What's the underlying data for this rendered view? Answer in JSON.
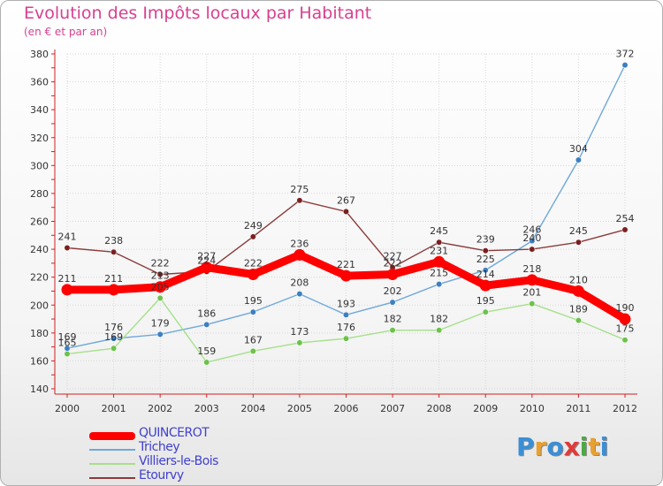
{
  "header": {
    "title": "Evolution des Impôts locaux par Habitant",
    "subtitle": "(en € et par an)"
  },
  "logo": {
    "text": "Proxiti",
    "colors": [
      "#3a8fd6",
      "#e8a030",
      "#3a8fd6",
      "#e03a3a",
      "#4aaa44",
      "#e8a030",
      "#3a8fd6"
    ]
  },
  "chart_data": {
    "type": "line",
    "title": "Evolution des Impôts locaux par Habitant",
    "subtitle": "(en € et par an)",
    "xlabel": "",
    "ylabel": "",
    "ylim": [
      140,
      380
    ],
    "yticks": [
      140,
      160,
      180,
      200,
      220,
      240,
      260,
      280,
      300,
      320,
      340,
      360,
      380
    ],
    "grid": true,
    "legend_position": "bottom-left",
    "categories": [
      "2000",
      "2001",
      "2002",
      "2003",
      "2004",
      "2005",
      "2006",
      "2007",
      "2008",
      "2009",
      "2010",
      "2011",
      "2012"
    ],
    "series": [
      {
        "name": "QUINCEROT",
        "color": "#ff0000",
        "emphasis": true,
        "values": [
          211,
          211,
          213,
          227,
          222,
          236,
          221,
          222,
          231,
          214,
          218,
          210,
          190
        ],
        "labels": [
          "211",
          "211",
          "213",
          "227",
          "222",
          "236",
          "221",
          "222",
          "231",
          "214",
          "218",
          "210",
          "190"
        ]
      },
      {
        "name": "Trichey",
        "color": "#6fa8dc",
        "marker": "#3b7fc4",
        "values": [
          169,
          176,
          179,
          186,
          195,
          208,
          193,
          202,
          215,
          225,
          246,
          304,
          372
        ],
        "labels": [
          "169",
          "176",
          "179",
          "186",
          "195",
          "208",
          "193",
          "202",
          "215",
          "225",
          "246",
          "304",
          "372"
        ]
      },
      {
        "name": "Villiers-le-Bois",
        "color": "#a6e08a",
        "marker": "#6cc24a",
        "values": [
          165,
          169,
          205,
          159,
          167,
          173,
          176,
          182,
          182,
          195,
          201,
          189,
          175
        ],
        "labels": [
          "165",
          "169",
          "205",
          "159",
          "167",
          "173",
          "176",
          "182",
          "182",
          "195",
          "201",
          "189",
          "175"
        ]
      },
      {
        "name": "Etourvy",
        "color": "#8c3a3a",
        "marker": "#7a2020",
        "values": [
          241,
          238,
          222,
          224,
          249,
          275,
          267,
          227,
          245,
          239,
          240,
          245,
          254
        ],
        "labels": [
          "241",
          "238",
          "222",
          "224",
          "249",
          "275",
          "267",
          "227",
          "245",
          "239",
          "240",
          "245",
          "254"
        ]
      }
    ]
  }
}
